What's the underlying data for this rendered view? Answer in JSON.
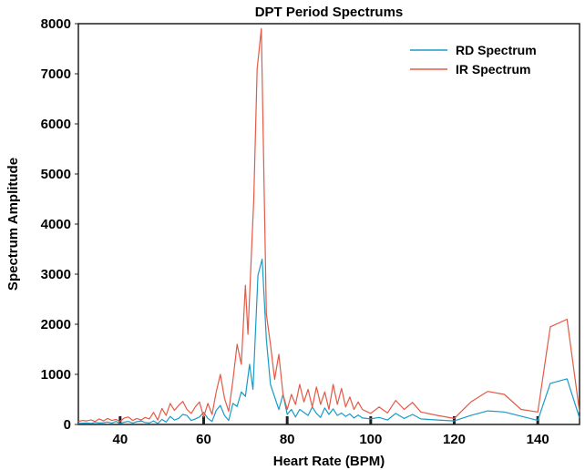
{
  "chart_data": {
    "type": "line",
    "title": "DPT Period Spectrums",
    "xlabel": "Heart Rate (BPM)",
    "ylabel": "Spectrum Amplitude",
    "xlim": [
      30,
      150
    ],
    "ylim": [
      0,
      8000
    ],
    "x_ticks": [
      40,
      60,
      80,
      100,
      120,
      140
    ],
    "y_ticks": [
      0,
      1000,
      2000,
      3000,
      4000,
      5000,
      6000,
      7000,
      8000
    ],
    "grid": false,
    "legend_position": "top-right",
    "series": [
      {
        "name": "RD Spectrum",
        "color": "#1a9bc7",
        "points": [
          [
            30,
            20
          ],
          [
            31,
            25
          ],
          [
            32,
            30
          ],
          [
            33,
            20
          ],
          [
            34,
            40
          ],
          [
            35,
            30
          ],
          [
            36,
            35
          ],
          [
            37,
            50
          ],
          [
            38,
            30
          ],
          [
            39,
            60
          ],
          [
            40,
            20
          ],
          [
            41,
            45
          ],
          [
            42,
            60
          ],
          [
            43,
            30
          ],
          [
            44,
            55
          ],
          [
            45,
            70
          ],
          [
            46,
            40
          ],
          [
            47,
            30
          ],
          [
            48,
            70
          ],
          [
            49,
            20
          ],
          [
            50,
            100
          ],
          [
            51,
            50
          ],
          [
            52,
            160
          ],
          [
            53,
            90
          ],
          [
            54,
            120
          ],
          [
            55,
            200
          ],
          [
            56,
            180
          ],
          [
            57,
            80
          ],
          [
            58,
            110
          ],
          [
            59,
            150
          ],
          [
            60,
            240
          ],
          [
            61,
            120
          ],
          [
            62,
            60
          ],
          [
            63,
            280
          ],
          [
            64,
            380
          ],
          [
            65,
            180
          ],
          [
            66,
            80
          ],
          [
            67,
            420
          ],
          [
            68,
            360
          ],
          [
            69,
            650
          ],
          [
            70,
            560
          ],
          [
            71,
            1200
          ],
          [
            71.8,
            700
          ],
          [
            73,
            2980
          ],
          [
            74,
            3300
          ],
          [
            75,
            1700
          ],
          [
            76,
            800
          ],
          [
            77,
            550
          ],
          [
            78,
            300
          ],
          [
            79,
            600
          ],
          [
            80,
            200
          ],
          [
            81,
            300
          ],
          [
            82,
            150
          ],
          [
            83,
            300
          ],
          [
            84,
            240
          ],
          [
            85,
            180
          ],
          [
            86,
            350
          ],
          [
            87,
            220
          ],
          [
            88,
            140
          ],
          [
            89,
            330
          ],
          [
            90,
            200
          ],
          [
            91,
            310
          ],
          [
            92,
            180
          ],
          [
            93,
            230
          ],
          [
            94,
            160
          ],
          [
            95,
            210
          ],
          [
            96,
            130
          ],
          [
            97,
            190
          ],
          [
            98,
            130
          ],
          [
            100,
            110
          ],
          [
            102,
            140
          ],
          [
            104,
            90
          ],
          [
            106,
            220
          ],
          [
            108,
            120
          ],
          [
            110,
            200
          ],
          [
            112,
            110
          ],
          [
            116,
            90
          ],
          [
            120,
            70
          ],
          [
            124,
            180
          ],
          [
            128,
            270
          ],
          [
            132,
            250
          ],
          [
            140,
            80
          ],
          [
            143,
            820
          ],
          [
            147,
            910
          ],
          [
            150,
            130
          ]
        ]
      },
      {
        "name": "IR Spectrum",
        "color": "#e35a46",
        "points": [
          [
            30,
            60
          ],
          [
            31,
            80
          ],
          [
            32,
            70
          ],
          [
            33,
            90
          ],
          [
            34,
            60
          ],
          [
            35,
            110
          ],
          [
            36,
            70
          ],
          [
            37,
            120
          ],
          [
            38,
            80
          ],
          [
            39,
            100
          ],
          [
            40,
            60
          ],
          [
            41,
            130
          ],
          [
            42,
            150
          ],
          [
            43,
            80
          ],
          [
            44,
            120
          ],
          [
            45,
            90
          ],
          [
            46,
            140
          ],
          [
            47,
            110
          ],
          [
            48,
            240
          ],
          [
            49,
            90
          ],
          [
            50,
            320
          ],
          [
            51,
            180
          ],
          [
            52,
            420
          ],
          [
            53,
            280
          ],
          [
            54,
            380
          ],
          [
            55,
            460
          ],
          [
            56,
            300
          ],
          [
            57,
            220
          ],
          [
            58,
            350
          ],
          [
            59,
            450
          ],
          [
            60,
            150
          ],
          [
            61,
            420
          ],
          [
            62,
            200
          ],
          [
            63,
            650
          ],
          [
            64,
            1000
          ],
          [
            65,
            520
          ],
          [
            66,
            260
          ],
          [
            67,
            880
          ],
          [
            68,
            1600
          ],
          [
            69,
            1200
          ],
          [
            70,
            2780
          ],
          [
            70.6,
            1800
          ],
          [
            72,
            4500
          ],
          [
            72.8,
            7100
          ],
          [
            73.8,
            7900
          ],
          [
            75,
            2200
          ],
          [
            76,
            1600
          ],
          [
            77,
            900
          ],
          [
            78,
            1400
          ],
          [
            79,
            600
          ],
          [
            80,
            300
          ],
          [
            81,
            600
          ],
          [
            82,
            400
          ],
          [
            83,
            800
          ],
          [
            84,
            450
          ],
          [
            85,
            700
          ],
          [
            86,
            350
          ],
          [
            87,
            750
          ],
          [
            88,
            400
          ],
          [
            89,
            650
          ],
          [
            90,
            300
          ],
          [
            91,
            800
          ],
          [
            92,
            400
          ],
          [
            93,
            720
          ],
          [
            94,
            350
          ],
          [
            95,
            550
          ],
          [
            96,
            300
          ],
          [
            97,
            450
          ],
          [
            98,
            300
          ],
          [
            100,
            220
          ],
          [
            102,
            350
          ],
          [
            104,
            230
          ],
          [
            106,
            480
          ],
          [
            108,
            300
          ],
          [
            110,
            440
          ],
          [
            112,
            250
          ],
          [
            116,
            180
          ],
          [
            120,
            120
          ],
          [
            124,
            450
          ],
          [
            128,
            660
          ],
          [
            132,
            600
          ],
          [
            136,
            300
          ],
          [
            140,
            250
          ],
          [
            143,
            1950
          ],
          [
            147,
            2100
          ],
          [
            150,
            250
          ]
        ]
      }
    ]
  }
}
